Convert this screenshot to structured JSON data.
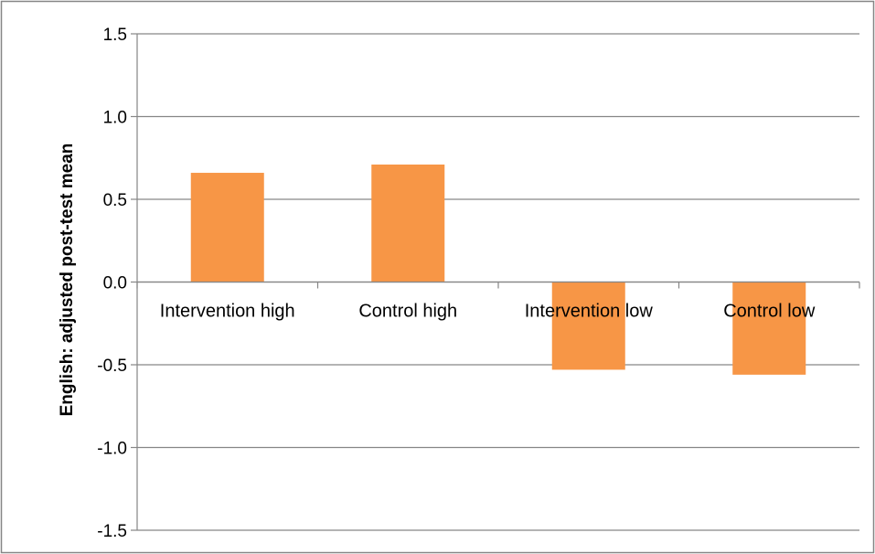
{
  "chart_data": {
    "type": "bar",
    "categories": [
      "Intervention high",
      "Control high",
      "Intervention low",
      "Control low"
    ],
    "values": [
      0.66,
      0.71,
      -0.53,
      -0.56
    ],
    "title": "",
    "xlabel": "",
    "ylabel": "English: adjusted post-test mean",
    "ylim": [
      -1.5,
      1.5
    ],
    "yticks": [
      1.5,
      1.0,
      0.5,
      0.0,
      -0.5,
      -1.0,
      -1.5
    ],
    "ytick_labels": [
      "1.5",
      "1.0",
      "0.5",
      "0.0",
      "-0.5",
      "-1.0",
      "-1.5"
    ],
    "grid": true,
    "legend": "none",
    "colors": {
      "bar": "#F79646",
      "grid": "#868686",
      "axis": "#868686",
      "frame": "#868686"
    }
  }
}
